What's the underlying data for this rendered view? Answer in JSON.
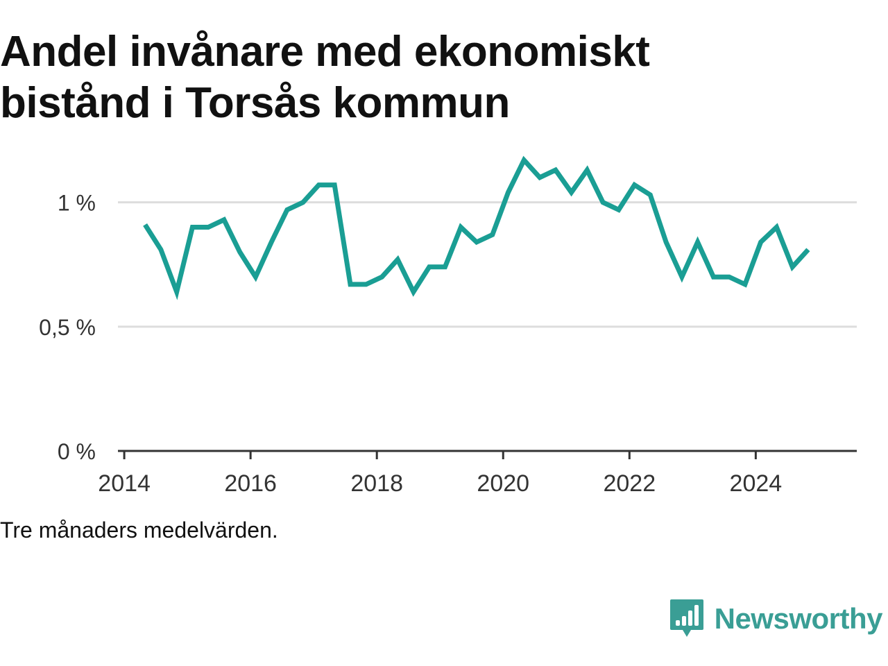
{
  "header": {
    "title_line1": "Andel invånare med ekonomiskt",
    "title_line2": "bistånd i Torsås kommun"
  },
  "footer": {
    "note": "Tre månaders medelvärden."
  },
  "brand": {
    "name": "Newsworthy",
    "icon": "bar-chart-speech-bubble-icon",
    "color": "#3a9e95"
  },
  "colors": {
    "line": "#1a9e94",
    "grid": "#dddddd",
    "axis": "#333333"
  },
  "chart_data": {
    "type": "line",
    "title": "Andel invånare med ekonomiskt bistånd i Torsås kommun",
    "xlabel": "",
    "ylabel": "",
    "xlim": [
      2013.9,
      2025.6
    ],
    "ylim": [
      0,
      1.2
    ],
    "x_ticks": [
      2014,
      2016,
      2018,
      2020,
      2022,
      2024
    ],
    "y_ticks": [
      0,
      0.5,
      1
    ],
    "y_tick_labels": [
      "0 %",
      "0,5 %",
      "1 %"
    ],
    "grid": "horizontal",
    "series": [
      {
        "x": [
          2014.33,
          2014.58,
          2014.83,
          2015.08,
          2015.33,
          2015.58,
          2015.83,
          2016.08,
          2016.33,
          2016.58,
          2016.83,
          2017.08,
          2017.33,
          2017.58,
          2017.83,
          2018.08,
          2018.33,
          2018.58,
          2018.83,
          2019.08,
          2019.33,
          2019.58,
          2019.83,
          2020.08,
          2020.33,
          2020.58,
          2020.83,
          2021.08,
          2021.33,
          2021.58,
          2021.83,
          2022.08,
          2022.33,
          2022.58,
          2022.83,
          2023.08,
          2023.33,
          2023.58,
          2023.83,
          2024.08,
          2024.33,
          2024.58,
          2024.83
        ],
        "values": [
          0.91,
          0.81,
          0.64,
          0.9,
          0.9,
          0.93,
          0.8,
          0.7,
          0.84,
          0.97,
          1.0,
          1.07,
          1.07,
          0.67,
          0.67,
          0.7,
          0.77,
          0.64,
          0.74,
          0.74,
          0.9,
          0.84,
          0.87,
          1.04,
          1.17,
          1.1,
          1.13,
          1.04,
          1.13,
          1.0,
          0.97,
          1.07,
          1.03,
          0.84,
          0.7,
          0.84,
          0.7,
          0.7,
          0.67,
          0.84,
          0.9,
          0.74,
          0.81
        ]
      }
    ]
  }
}
